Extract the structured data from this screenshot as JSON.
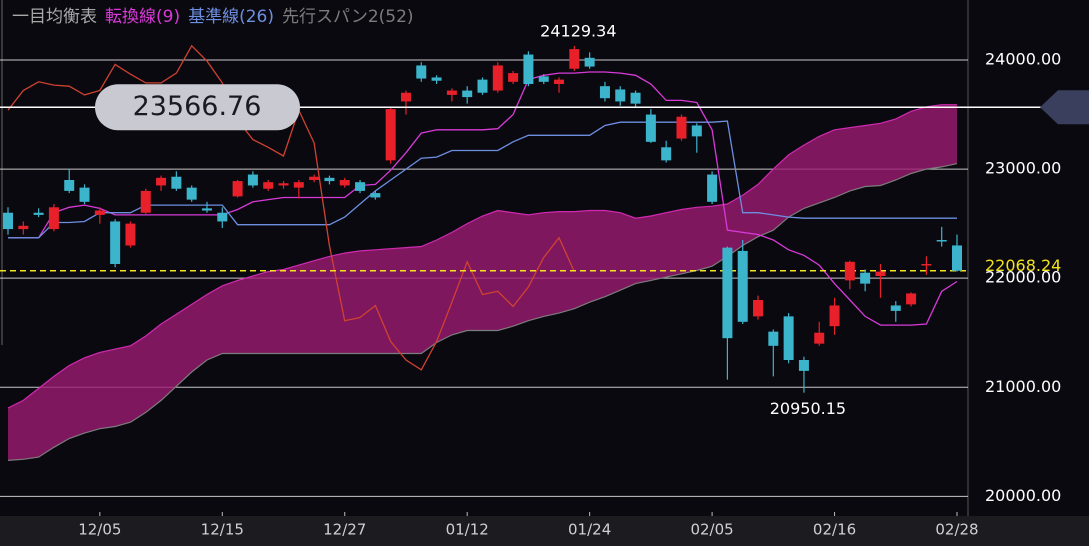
{
  "chart_data": {
    "type": "candlestick",
    "title": "一目均衡表",
    "title_color": "#a8a8a8",
    "categories": [
      null,
      null,
      null,
      null,
      null,
      null,
      "12/05",
      null,
      null,
      null,
      null,
      null,
      null,
      null,
      "12/15",
      null,
      null,
      null,
      null,
      null,
      null,
      null,
      "12/27",
      null,
      null,
      null,
      null,
      null,
      null,
      null,
      "01/12",
      null,
      null,
      null,
      null,
      null,
      null,
      null,
      "01/24",
      null,
      null,
      null,
      null,
      null,
      null,
      null,
      "02/05",
      null,
      null,
      null,
      null,
      null,
      null,
      null,
      "02/16",
      null,
      null,
      null,
      null,
      null,
      null,
      null,
      "02/28"
    ],
    "open": [
      22600,
      22450,
      22600,
      22450,
      22900,
      22830,
      22580,
      22520,
      22300,
      22600,
      22850,
      22930,
      22830,
      22640,
      22600,
      22750,
      22950,
      22820,
      22850,
      22830,
      22900,
      22920,
      22850,
      22880,
      22780,
      23080,
      23620,
      23950,
      23840,
      23680,
      23720,
      23820,
      23720,
      23800,
      24050,
      23850,
      23780,
      23920,
      24020,
      23760,
      23730,
      23700,
      23500,
      23200,
      23280,
      23400,
      22950,
      22280,
      22250,
      21650,
      21510,
      21650,
      21250,
      21400,
      21560,
      21980,
      22050,
      22020,
      21750,
      21760,
      22120,
      22350,
      22300
    ],
    "high": [
      22650,
      22520,
      22640,
      22680,
      23000,
      22860,
      22650,
      22540,
      22520,
      22820,
      22940,
      22980,
      22850,
      22700,
      22650,
      22900,
      22980,
      22900,
      22890,
      22900,
      22950,
      22940,
      22920,
      22900,
      22800,
      23570,
      23720,
      23980,
      23860,
      23740,
      23760,
      23840,
      23980,
      23900,
      24080,
      23870,
      23840,
      24129.34,
      24070,
      23800,
      23760,
      23720,
      23550,
      23260,
      23500,
      23420,
      22980,
      22290,
      22350,
      21840,
      21530,
      21680,
      21280,
      21600,
      21820,
      22160,
      22080,
      22130,
      21790,
      21870,
      22200,
      22470,
      22400
    ],
    "low": [
      22400,
      22400,
      22560,
      22430,
      22780,
      22680,
      22500,
      22100,
      22280,
      22590,
      22800,
      22800,
      22700,
      22600,
      22460,
      22740,
      22830,
      22800,
      22820,
      22730,
      22880,
      22860,
      22830,
      22780,
      22720,
      23050,
      23500,
      23800,
      23780,
      23620,
      23600,
      23680,
      23700,
      23780,
      23760,
      23780,
      23700,
      23900,
      23920,
      23620,
      23580,
      23560,
      23240,
      23060,
      23260,
      23150,
      22680,
      21070,
      21580,
      21620,
      21100,
      21220,
      20950.15,
      21380,
      21480,
      21900,
      21880,
      21820,
      21600,
      21740,
      22030,
      22290,
      22060
    ],
    "close": [
      22450,
      22480,
      22580,
      22650,
      22800,
      22700,
      22620,
      22130,
      22500,
      22800,
      22920,
      22820,
      22720,
      22620,
      22520,
      22890,
      22850,
      22880,
      22870,
      22880,
      22930,
      22890,
      22900,
      22800,
      22740,
      23550,
      23700,
      23830,
      23810,
      23720,
      23660,
      23700,
      23950,
      23880,
      23780,
      23800,
      23820,
      24100,
      23940,
      23650,
      23620,
      23600,
      23250,
      23080,
      23480,
      23300,
      22700,
      21450,
      21600,
      21800,
      21380,
      21250,
      21150,
      21500,
      21750,
      22150,
      21950,
      22060,
      21700,
      21860,
      22130,
      22340,
      22068.24
    ],
    "up_color": "#e8202a",
    "down_color": "#3cb4cc",
    "series": [
      {
        "name": "転換線(9)",
        "color": "#d83ad8",
        "values": [
          22370,
          22370,
          22370,
          22600,
          22650,
          22670,
          22640,
          22580,
          22580,
          22580,
          22580,
          22580,
          22580,
          22580,
          22580,
          22630,
          22700,
          22720,
          22740,
          22740,
          22740,
          22740,
          22740,
          22850,
          22860,
          22990,
          23150,
          23330,
          23360,
          23360,
          23360,
          23360,
          23370,
          23500,
          23820,
          23860,
          23880,
          23880,
          23890,
          23890,
          23880,
          23860,
          23780,
          23630,
          23630,
          23610,
          23360,
          22440,
          22420,
          22400,
          22350,
          22260,
          22210,
          22120,
          21950,
          21800,
          21650,
          21570,
          21570,
          21570,
          21580,
          21880,
          21970
        ]
      },
      {
        "name": "基準線(26)",
        "color": "#6d8fe0",
        "values": [
          22370,
          22370,
          22370,
          22510,
          22510,
          22520,
          22600,
          22600,
          22600,
          22670,
          22670,
          22670,
          22670,
          22670,
          22670,
          22490,
          22490,
          22490,
          22490,
          22490,
          22490,
          22490,
          22560,
          22680,
          22800,
          22900,
          23000,
          23100,
          23110,
          23170,
          23170,
          23170,
          23170,
          23250,
          23310,
          23310,
          23310,
          23310,
          23310,
          23400,
          23430,
          23430,
          23430,
          23430,
          23430,
          23430,
          23430,
          23440,
          22600,
          22600,
          22580,
          22560,
          22550,
          22550,
          22550,
          22550,
          22550,
          22550,
          22550,
          22550,
          22550,
          22550,
          22550
        ]
      },
      {
        "color": "#cf4230",
        "values": [
          23540,
          23720,
          23800,
          23770,
          23760,
          23680,
          23720,
          23960,
          23870,
          23790,
          23790,
          23880,
          24130,
          23990,
          23790,
          23450,
          23270,
          23200,
          23120,
          23540,
          23240,
          22300,
          21610,
          21640,
          21750,
          21420,
          21250,
          21160,
          21420,
          21780,
          22150,
          21850,
          21880,
          21740,
          21920,
          22190,
          22370,
          22060,
          null,
          null,
          null,
          null,
          null,
          null,
          null,
          null,
          null,
          null,
          null,
          null,
          null,
          null,
          null,
          null,
          null,
          null,
          null,
          null,
          null,
          null,
          null,
          null,
          null
        ]
      }
    ],
    "cloud": {
      "color": "#9c1c72",
      "span_a": {
        "color": "#d02ab0",
        "values": [
          20810,
          20880,
          20990,
          21100,
          21200,
          21270,
          21320,
          21350,
          21380,
          21470,
          21580,
          21670,
          21760,
          21850,
          21930,
          21980,
          22020,
          22060,
          22080,
          22120,
          22160,
          22200,
          22230,
          22250,
          22260,
          22270,
          22280,
          22290,
          22350,
          22420,
          22500,
          22570,
          22620,
          22600,
          22580,
          22600,
          22610,
          22610,
          22620,
          22620,
          22600,
          22550,
          22570,
          22600,
          22630,
          22650,
          22660,
          22680,
          22760,
          22860,
          23000,
          23130,
          23220,
          23300,
          23360,
          23380,
          23400,
          23420,
          23460,
          23530,
          23570,
          23590,
          23590
        ]
      },
      "span_b": {
        "name": "先行スパン2(52)",
        "color": "#7c7c7c",
        "values": [
          20330,
          20340,
          20360,
          20450,
          20530,
          20580,
          20620,
          20640,
          20680,
          20770,
          20880,
          21010,
          21140,
          21250,
          21310,
          21310,
          21310,
          21310,
          21310,
          21310,
          21310,
          21310,
          21310,
          21310,
          21310,
          21310,
          21310,
          21310,
          21410,
          21480,
          21520,
          21520,
          21520,
          21560,
          21610,
          21650,
          21680,
          21720,
          21780,
          21830,
          21890,
          21950,
          21980,
          22010,
          22040,
          22070,
          22110,
          22200,
          22300,
          22380,
          22440,
          22560,
          22640,
          22690,
          22740,
          22800,
          22840,
          22850,
          22900,
          22960,
          23000,
          23020,
          23050
        ]
      }
    },
    "ylim": [
      19820,
      24550
    ],
    "yticks": [
      {
        "value": 20000,
        "label": "20000.00"
      },
      {
        "value": 21000,
        "label": "21000.00"
      },
      {
        "value": 22000,
        "label": "22000.00"
      },
      {
        "value": 23000,
        "label": "23000.00"
      },
      {
        "value": 24000,
        "label": "24000.00"
      }
    ],
    "grid": true,
    "high_label": "24129.34",
    "low_label": "20950.15",
    "crosshair": {
      "value": 23566.76,
      "label": "23566.76"
    },
    "last_price": {
      "value": 22068.24,
      "label": "22068.24",
      "color": "#f2e41c"
    }
  }
}
